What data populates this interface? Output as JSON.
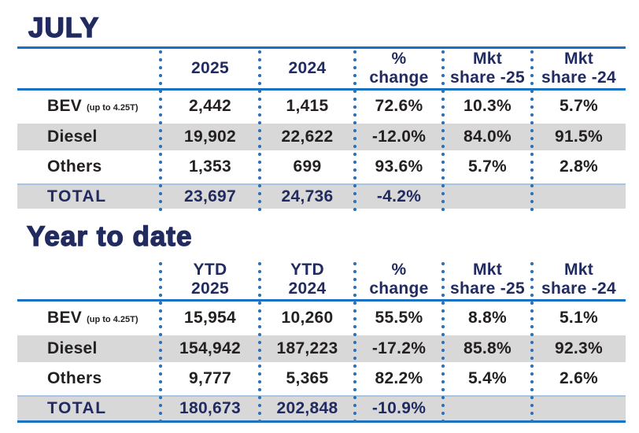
{
  "colors": {
    "rule_blue": "#1a73c2",
    "dot_blue": "#2d74b8",
    "light_blue_divider": "#a7c4e4",
    "navy_text": "#212b5f",
    "shaded_row_gray": "#d8d8d8",
    "data_text": "#242021"
  },
  "chart_data": [
    {
      "type": "table",
      "title": "JULY",
      "columns": [
        "",
        "2025",
        "2024",
        "% change",
        "Mkt share -25",
        "Mkt share -24"
      ],
      "header_lines": [
        {
          "l1": "2025",
          "l2": ""
        },
        {
          "l1": "2024",
          "l2": ""
        },
        {
          "l1": "%",
          "l2": "change"
        },
        {
          "l1": "Mkt",
          "l2": "share -25"
        },
        {
          "l1": "Mkt",
          "l2": "share -24"
        }
      ],
      "rows": [
        {
          "label": "BEV",
          "note": "(up to 4.25T)",
          "shaded": false,
          "values": [
            "2,442",
            "1,415",
            "72.6%",
            "10.3%",
            "5.7%"
          ]
        },
        {
          "label": "Diesel",
          "note": "",
          "shaded": true,
          "values": [
            "19,902",
            "22,622",
            "-12.0%",
            "84.0%",
            "91.5%"
          ]
        },
        {
          "label": "Others",
          "note": "",
          "shaded": false,
          "values": [
            "1,353",
            "699",
            "93.6%",
            "5.7%",
            "2.8%"
          ]
        }
      ],
      "total": {
        "label": "TOTAL",
        "values": [
          "23,697",
          "24,736",
          "-4.2%",
          "",
          ""
        ]
      }
    },
    {
      "type": "table",
      "title": "Year to date",
      "columns": [
        "",
        "YTD 2025",
        "YTD 2024",
        "% change",
        "Mkt share -25",
        "Mkt share -24"
      ],
      "header_lines": [
        {
          "l1": "YTD",
          "l2": "2025"
        },
        {
          "l1": "YTD",
          "l2": "2024"
        },
        {
          "l1": "%",
          "l2": "change"
        },
        {
          "l1": "Mkt",
          "l2": "share -25"
        },
        {
          "l1": "Mkt",
          "l2": "share -24"
        }
      ],
      "rows": [
        {
          "label": "BEV",
          "note": "(up to 4.25T)",
          "shaded": false,
          "values": [
            "15,954",
            "10,260",
            "55.5%",
            "8.8%",
            "5.1%"
          ]
        },
        {
          "label": "Diesel",
          "note": "",
          "shaded": true,
          "values": [
            "154,942",
            "187,223",
            "-17.2%",
            "85.8%",
            "92.3%"
          ]
        },
        {
          "label": "Others",
          "note": "",
          "shaded": false,
          "values": [
            "9,777",
            "5,365",
            "82.2%",
            "5.4%",
            "2.6%"
          ]
        }
      ],
      "total": {
        "label": "TOTAL",
        "values": [
          "180,673",
          "202,848",
          "-10.9%",
          "",
          ""
        ]
      }
    }
  ]
}
